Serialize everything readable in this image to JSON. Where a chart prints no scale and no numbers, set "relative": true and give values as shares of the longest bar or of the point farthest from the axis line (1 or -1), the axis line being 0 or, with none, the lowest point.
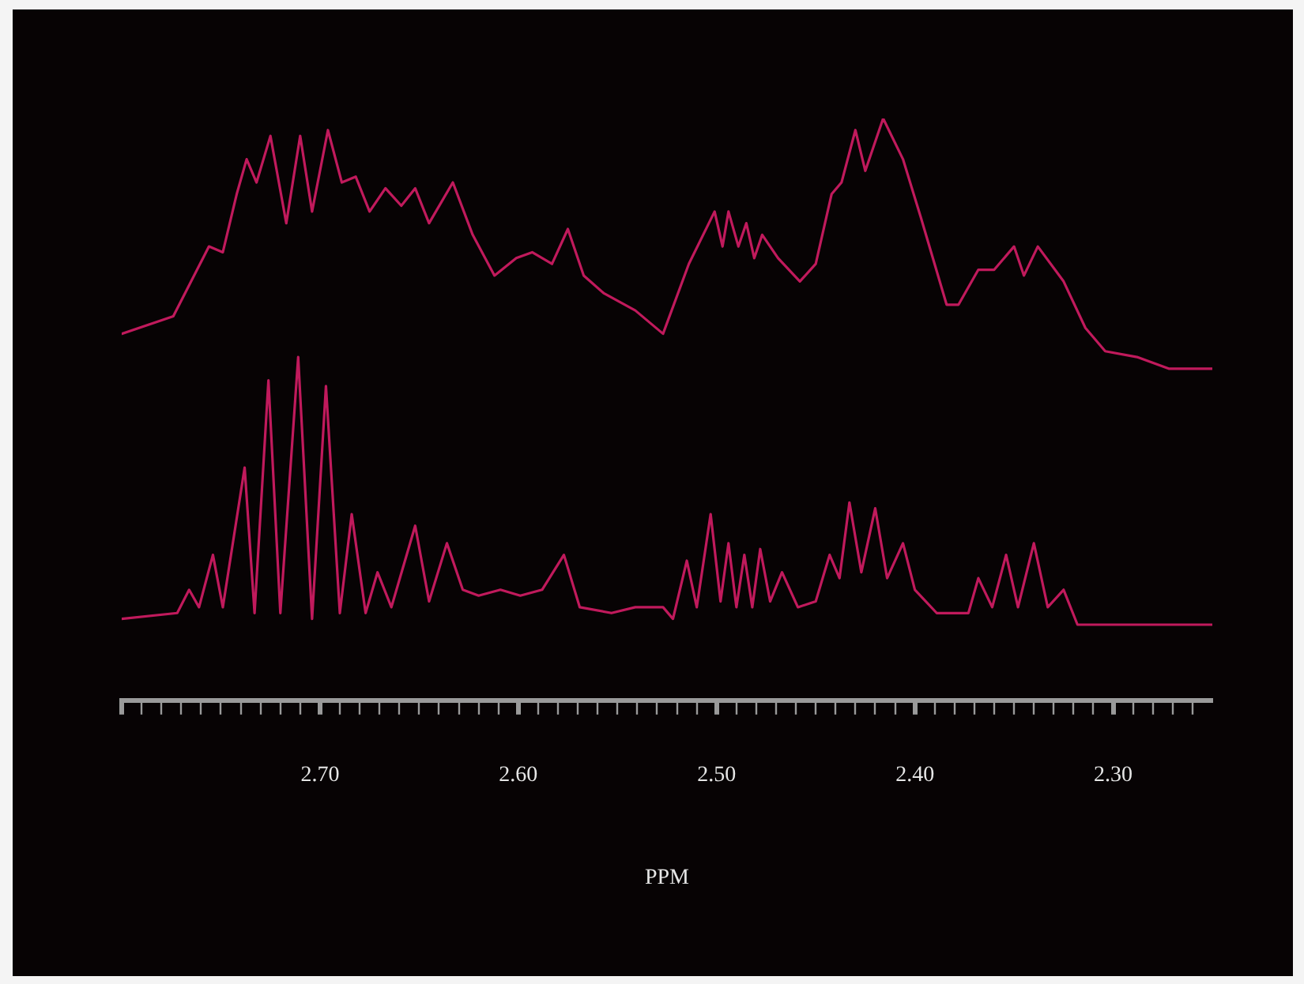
{
  "chart_data": {
    "type": "line",
    "xlabel": "PPM",
    "relative": true,
    "legend": false,
    "grid": false,
    "xlim": [
      2.8,
      2.25
    ],
    "xticks": [
      {
        "value": 2.8,
        "label": null
      },
      {
        "value": 2.79,
        "label": null
      },
      {
        "value": 2.78,
        "label": null
      },
      {
        "value": 2.77,
        "label": null
      },
      {
        "value": 2.76,
        "label": null
      },
      {
        "value": 2.75,
        "label": null
      },
      {
        "value": 2.74,
        "label": null
      },
      {
        "value": 2.73,
        "label": null
      },
      {
        "value": 2.72,
        "label": null
      },
      {
        "value": 2.71,
        "label": null
      },
      {
        "value": 2.7,
        "label": "2.70"
      },
      {
        "value": 2.69,
        "label": null
      },
      {
        "value": 2.68,
        "label": null
      },
      {
        "value": 2.67,
        "label": null
      },
      {
        "value": 2.66,
        "label": null
      },
      {
        "value": 2.65,
        "label": null
      },
      {
        "value": 2.64,
        "label": null
      },
      {
        "value": 2.63,
        "label": null
      },
      {
        "value": 2.62,
        "label": null
      },
      {
        "value": 2.61,
        "label": null
      },
      {
        "value": 2.6,
        "label": "2.60"
      },
      {
        "value": 2.59,
        "label": null
      },
      {
        "value": 2.58,
        "label": null
      },
      {
        "value": 2.57,
        "label": null
      },
      {
        "value": 2.56,
        "label": null
      },
      {
        "value": 2.55,
        "label": null
      },
      {
        "value": 2.54,
        "label": null
      },
      {
        "value": 2.53,
        "label": null
      },
      {
        "value": 2.52,
        "label": null
      },
      {
        "value": 2.51,
        "label": null
      },
      {
        "value": 2.5,
        "label": "2.50"
      },
      {
        "value": 2.49,
        "label": null
      },
      {
        "value": 2.48,
        "label": null
      },
      {
        "value": 2.47,
        "label": null
      },
      {
        "value": 2.46,
        "label": null
      },
      {
        "value": 2.45,
        "label": null
      },
      {
        "value": 2.44,
        "label": null
      },
      {
        "value": 2.43,
        "label": null
      },
      {
        "value": 2.42,
        "label": null
      },
      {
        "value": 2.41,
        "label": null
      },
      {
        "value": 2.4,
        "label": "2.40"
      },
      {
        "value": 2.39,
        "label": null
      },
      {
        "value": 2.38,
        "label": null
      },
      {
        "value": 2.37,
        "label": null
      },
      {
        "value": 2.36,
        "label": null
      },
      {
        "value": 2.35,
        "label": null
      },
      {
        "value": 2.34,
        "label": null
      },
      {
        "value": 2.33,
        "label": null
      },
      {
        "value": 2.32,
        "label": null
      },
      {
        "value": 2.31,
        "label": null
      },
      {
        "value": 2.3,
        "label": "2.30"
      },
      {
        "value": 2.29,
        "label": null
      },
      {
        "value": 2.28,
        "label": null
      },
      {
        "value": 2.27,
        "label": null
      },
      {
        "value": 2.26,
        "label": null
      }
    ],
    "series": [
      {
        "color": "#c01a5c",
        "x": [
          2.8,
          2.774,
          2.756,
          2.749,
          2.742,
          2.737,
          2.732,
          2.725,
          2.717,
          2.71,
          2.704,
          2.696,
          2.689,
          2.682,
          2.675,
          2.667,
          2.659,
          2.652,
          2.645,
          2.633,
          2.623,
          2.612,
          2.601,
          2.593,
          2.583,
          2.575,
          2.567,
          2.557,
          2.541,
          2.527,
          2.514,
          2.501,
          2.497,
          2.494,
          2.489,
          2.485,
          2.481,
          2.477,
          2.469,
          2.458,
          2.45,
          2.442,
          2.437,
          2.43,
          2.425,
          2.416,
          2.406,
          2.397,
          2.384,
          2.378,
          2.368,
          2.36,
          2.35,
          2.345,
          2.338,
          2.325,
          2.314,
          2.304,
          2.288,
          2.272,
          2.25
        ],
        "values": [
          0.63,
          0.66,
          0.78,
          0.77,
          0.87,
          0.93,
          0.89,
          0.97,
          0.82,
          0.97,
          0.84,
          0.98,
          0.89,
          0.9,
          0.84,
          0.88,
          0.85,
          0.88,
          0.82,
          0.89,
          0.8,
          0.73,
          0.76,
          0.77,
          0.75,
          0.81,
          0.73,
          0.7,
          0.67,
          0.63,
          0.75,
          0.84,
          0.78,
          0.84,
          0.78,
          0.82,
          0.76,
          0.8,
          0.76,
          0.72,
          0.75,
          0.87,
          0.89,
          0.98,
          0.91,
          1.0,
          0.93,
          0.83,
          0.68,
          0.68,
          0.74,
          0.74,
          0.78,
          0.73,
          0.78,
          0.72,
          0.64,
          0.6,
          0.59,
          0.57,
          0.57
        ]
      },
      {
        "color": "#c01a5c",
        "x": [
          2.8,
          2.772,
          2.766,
          2.761,
          2.754,
          2.749,
          2.738,
          2.733,
          2.726,
          2.72,
          2.711,
          2.704,
          2.697,
          2.69,
          2.684,
          2.677,
          2.671,
          2.664,
          2.652,
          2.645,
          2.636,
          2.628,
          2.62,
          2.609,
          2.599,
          2.588,
          2.577,
          2.569,
          2.553,
          2.541,
          2.527,
          2.522,
          2.515,
          2.51,
          2.503,
          2.498,
          2.494,
          2.49,
          2.486,
          2.482,
          2.478,
          2.473,
          2.467,
          2.459,
          2.45,
          2.443,
          2.438,
          2.433,
          2.427,
          2.42,
          2.414,
          2.406,
          2.4,
          2.389,
          2.373,
          2.368,
          2.361,
          2.354,
          2.348,
          2.34,
          2.333,
          2.325,
          2.318,
          2.288,
          2.25
        ],
        "values": [
          0.14,
          0.15,
          0.19,
          0.16,
          0.25,
          0.16,
          0.4,
          0.15,
          0.55,
          0.15,
          0.59,
          0.14,
          0.54,
          0.15,
          0.32,
          0.15,
          0.22,
          0.16,
          0.3,
          0.17,
          0.27,
          0.19,
          0.18,
          0.19,
          0.18,
          0.19,
          0.25,
          0.16,
          0.15,
          0.16,
          0.16,
          0.14,
          0.24,
          0.16,
          0.32,
          0.17,
          0.27,
          0.16,
          0.25,
          0.16,
          0.26,
          0.17,
          0.22,
          0.16,
          0.17,
          0.25,
          0.21,
          0.34,
          0.22,
          0.33,
          0.21,
          0.27,
          0.19,
          0.15,
          0.15,
          0.21,
          0.16,
          0.25,
          0.16,
          0.27,
          0.16,
          0.19,
          0.13,
          0.13,
          0.13
        ]
      }
    ]
  }
}
